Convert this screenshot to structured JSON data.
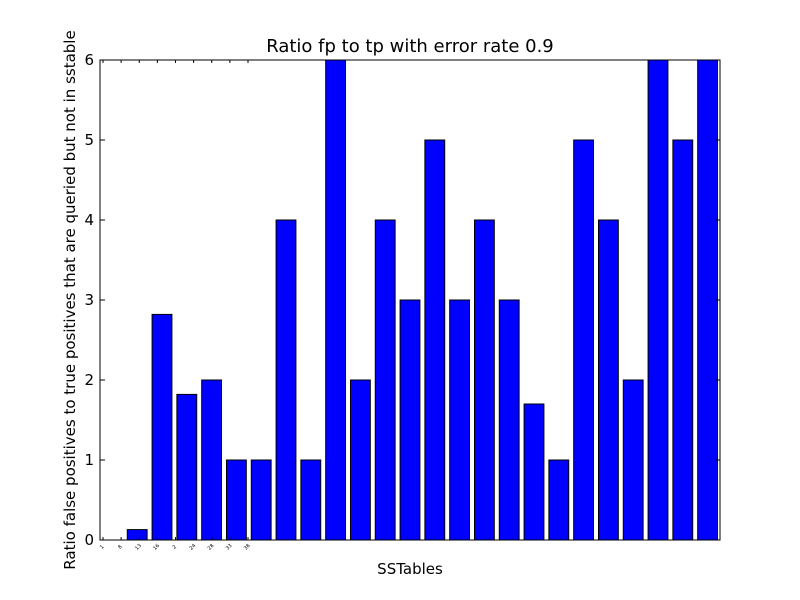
{
  "chart_data": {
    "type": "bar",
    "title": "Ratio fp to tp with error rate 0.9",
    "xlabel": "SSTables",
    "ylabel": "Ratio false positives to true positives that are queried but not in sstable",
    "ylim": [
      0,
      6
    ],
    "yticks": [
      0,
      1,
      2,
      3,
      4,
      5,
      6
    ],
    "grid": false,
    "bar_color": "#0000ff",
    "xtick_labels": [
      "1",
      "8",
      "13",
      "16",
      "2",
      "24",
      "28",
      "33",
      "38"
    ],
    "values": [
      0,
      0.13,
      2.82,
      1.82,
      2,
      1,
      1,
      4,
      1,
      6,
      2,
      4,
      3,
      5,
      3,
      4,
      3,
      1.7,
      1,
      5,
      4,
      2,
      6,
      5,
      6
    ]
  }
}
